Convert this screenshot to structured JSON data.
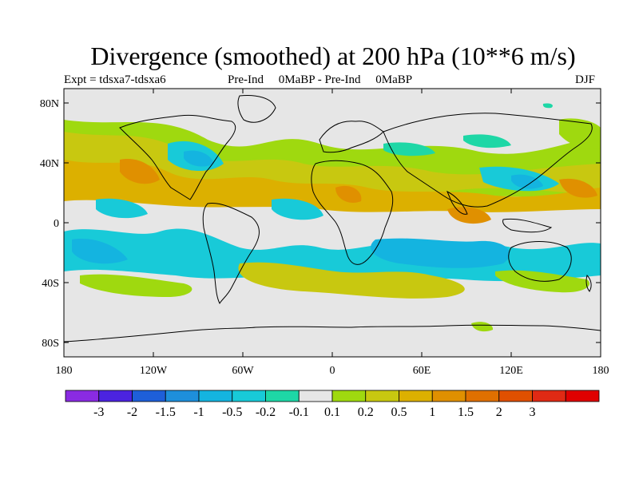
{
  "title": "Divergence (smoothed) at 200 hPa (10**6 m/s)",
  "subtitle_left": "Expt = tdsxa7-tdsxa6",
  "subtitle_center": "Pre-Ind     0MaBP - Pre-Ind     0MaBP",
  "subtitle_right": "DJF",
  "y_ticks": [
    "80N",
    "40N",
    "0",
    "40S",
    "80S"
  ],
  "x_ticks": [
    "180",
    "120W",
    "60W",
    "0",
    "60E",
    "120E",
    "180"
  ],
  "colorbar": {
    "colors": [
      "#8a2be2",
      "#4b23e0",
      "#1e5fd9",
      "#1e8fdb",
      "#14b4e0",
      "#18cad8",
      "#1ed7a6",
      "#e6e6e6",
      "#9fd90f",
      "#c8c810",
      "#dcb000",
      "#e09000",
      "#e07000",
      "#e05000",
      "#e02a14",
      "#e00000"
    ],
    "labels": [
      "-3",
      "-2",
      "-1.5",
      "-1",
      "-0.5",
      "-0.2",
      "-0.1",
      "0.1",
      "0.2",
      "0.5",
      "1",
      "1.5",
      "2",
      "3"
    ]
  },
  "colors": {
    "background": "#e6e6e6",
    "coast": "#000000"
  }
}
